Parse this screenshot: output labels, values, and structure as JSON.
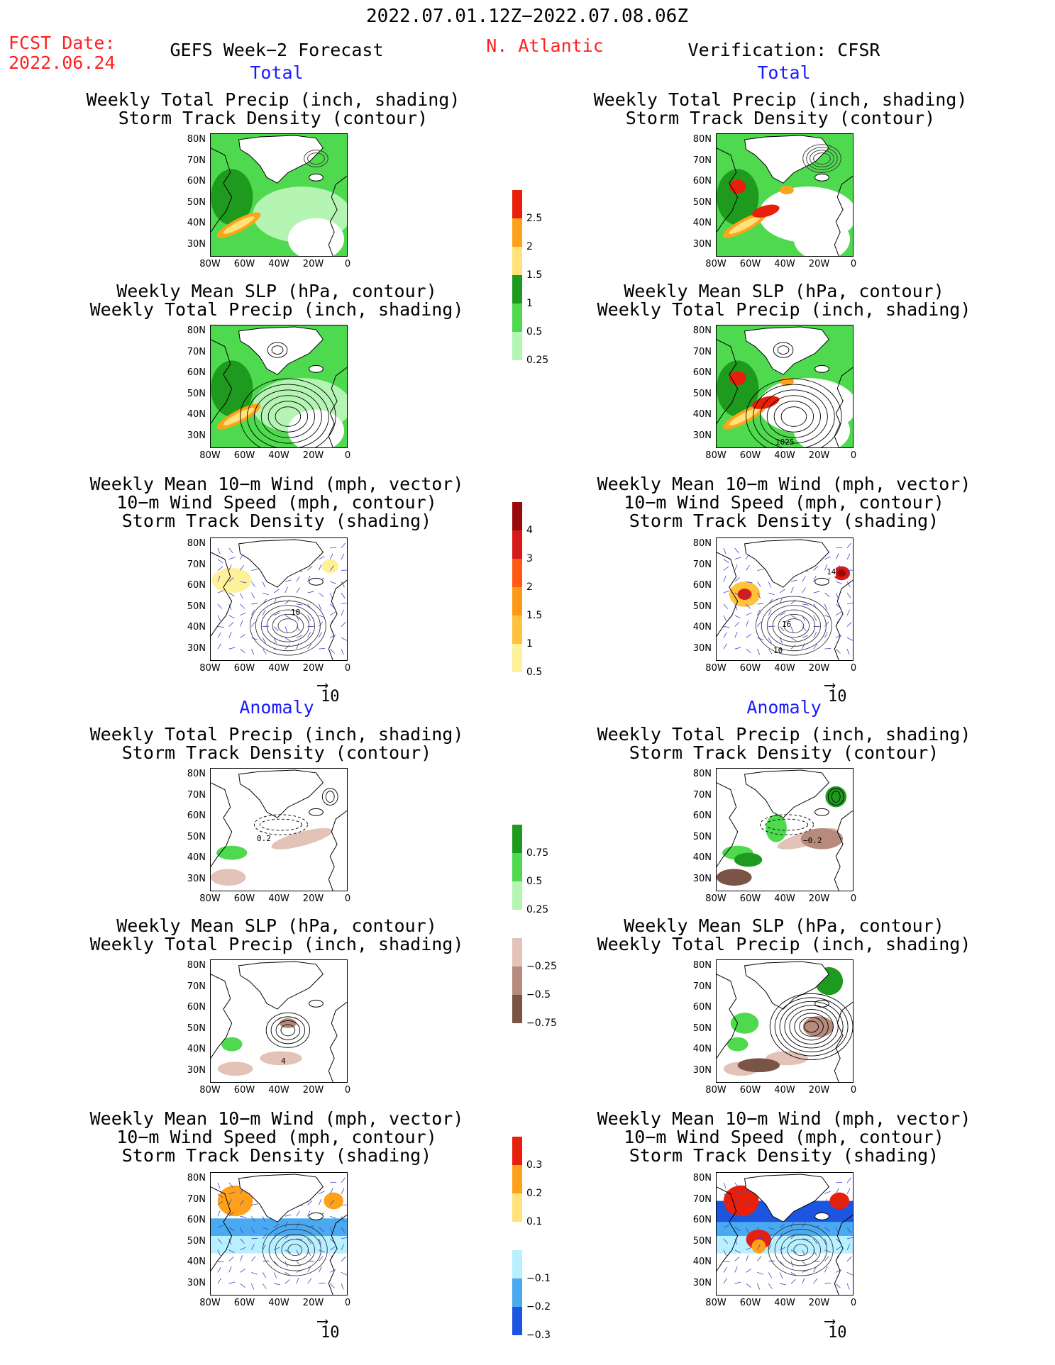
{
  "header": {
    "period": "2022.07.01.12Z−2022.07.08.06Z",
    "region": "N. Atlantic",
    "fcst_label": "FCST Date:",
    "fcst_date": "2022.06.24",
    "left_title": "GEFS Week−2 Forecast",
    "right_title": "Verification: CFSR"
  },
  "sections": {
    "total": "Total",
    "anomaly": "Anomaly"
  },
  "titles": {
    "precip_track": "Weekly Total Precip (inch, shading)\nStorm Track Density (contour)",
    "slp_precip": "Weekly Mean SLP (hPa, contour)\nWeekly Total Precip (inch, shading)",
    "wind_track": "Weekly Mean 10−m Wind (mph, vector)\n10−m Wind Speed (mph, contour)\nStorm Track Density (shading)"
  },
  "axes": {
    "lat_ticks": [
      "80N",
      "70N",
      "60N",
      "50N",
      "40N",
      "30N"
    ],
    "lon_ticks": [
      "80W",
      "60W",
      "40W",
      "20W",
      "0"
    ]
  },
  "vector_ref": "10",
  "colorbars": {
    "precip_total": {
      "labels": [
        "2.5",
        "2",
        "1.5",
        "1",
        "0.5",
        "0.25"
      ],
      "colors": [
        "#e8200a",
        "#ffa21a",
        "#ffe27a",
        "#1e9b1e",
        "#4fd94f",
        "#b4f5b4"
      ]
    },
    "track_total": {
      "labels": [
        "4",
        "3",
        "2",
        "1.5",
        "1",
        "0.5"
      ],
      "colors": [
        "#9b0a0a",
        "#d61a1a",
        "#ff5a14",
        "#ff9a14",
        "#ffc23a",
        "#fff09a"
      ]
    },
    "precip_anom": {
      "labels": [
        "0.75",
        "0.5",
        "0.25",
        "−0.25",
        "−0.5",
        "−0.75"
      ],
      "colors": [
        "#1e9b1e",
        "#4fd94f",
        "#b4f5b4",
        "#ffffff",
        "#e3c2b8",
        "#b68a7c",
        "#7a5446"
      ]
    },
    "track_anom": {
      "labels": [
        "0.3",
        "0.2",
        "0.1",
        "−0.1",
        "−0.2",
        "−0.3"
      ],
      "colors": [
        "#e8200a",
        "#ffa21a",
        "#ffe27a",
        "#ffffff",
        "#b9f0ff",
        "#49aaf0",
        "#1c56e0"
      ]
    }
  },
  "contour_labels": {
    "cfsr_slp_total": "1025",
    "gefs_wind_total": "10",
    "cfsr_wind_total_a": "14",
    "cfsr_wind_total_b": "16",
    "cfsr_wind_total_c": "10",
    "gefs_precip_anom": "0.2",
    "cfsr_precip_anom": "−0.2",
    "gefs_slp_anom": "4"
  }
}
